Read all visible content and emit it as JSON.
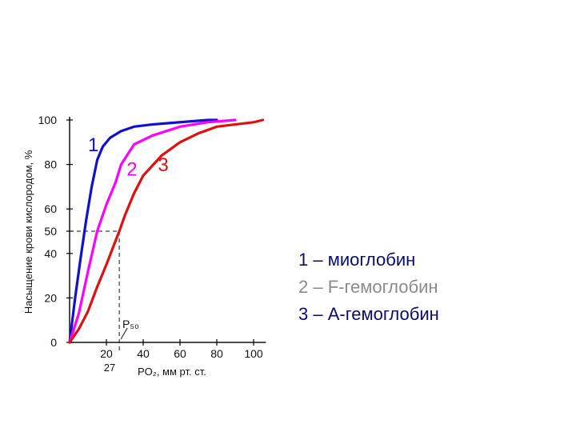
{
  "chart_data": {
    "type": "line",
    "ylabel": "Насыщение крови кислородом, %",
    "xlabel": "PO₂, мм рт. ст.",
    "xlim": [
      0,
      105
    ],
    "ylim": [
      0,
      100
    ],
    "x_ticks": [
      "20",
      "40",
      "60",
      "80",
      "100"
    ],
    "y_ticks": [
      "0",
      "20",
      "40",
      "50",
      "60",
      "80",
      "100"
    ],
    "annotations": {
      "p50": "P₅₀",
      "p50_x": "27",
      "p50_x_value": 27,
      "p50_y_value": 50
    },
    "grid": false,
    "series": [
      {
        "name": "1",
        "color": "#1010d0",
        "x": [
          0,
          3,
          6,
          9,
          12,
          15,
          18,
          22,
          28,
          35,
          45,
          60,
          75,
          80
        ],
        "y": [
          0,
          20,
          38,
          55,
          70,
          82,
          88,
          92,
          95,
          97,
          98,
          99,
          100,
          100
        ]
      },
      {
        "name": "2",
        "color": "#ff00ff",
        "x": [
          0,
          5,
          10,
          15,
          20,
          25,
          28,
          35,
          45,
          60,
          75,
          90
        ],
        "y": [
          0,
          13,
          32,
          50,
          62,
          72,
          80,
          89,
          93,
          97,
          99,
          100
        ]
      },
      {
        "name": "3",
        "color": "#e01010",
        "x": [
          0,
          5,
          10,
          15,
          20,
          27,
          30,
          35,
          40,
          50,
          60,
          70,
          80,
          90,
          100,
          105
        ],
        "y": [
          0,
          6,
          14,
          25,
          35,
          50,
          57,
          67,
          75,
          84,
          90,
          94,
          97,
          98,
          99,
          100
        ]
      }
    ]
  },
  "legend": {
    "items": [
      {
        "num": "1",
        "text": "– миоглобин"
      },
      {
        "num": "2",
        "text": "– F-гемоглобин"
      },
      {
        "num": "3",
        "text": "– А-гемоглобин"
      }
    ]
  }
}
